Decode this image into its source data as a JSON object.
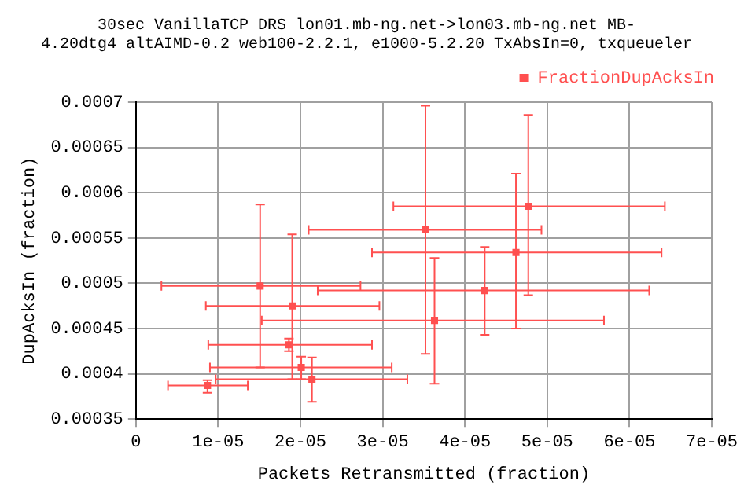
{
  "chart_data": {
    "type": "scatter",
    "title": "30sec VanillaTCP DRS lon01.mb-ng.net->lon03.mb-ng.net MB-",
    "subtitle": "4.20dtg4 altAIMD-0.2 web100-2.2.1, e1000-5.2.20 TxAbsIn=0, txqueueler",
    "xlabel": "Packets Retransmitted (fraction)",
    "ylabel": "DupAcksIn (fraction)",
    "x": [
      3.52e-05,
      4.77e-05,
      4.62e-05,
      4.24e-05,
      3.63e-05,
      1.51e-05,
      1.9e-05,
      1.86e-05,
      2.01e-05,
      2.14e-05,
      8.7e-06
    ],
    "series": [
      {
        "name": "FractionDupAcksIn",
        "color": "#ff5050",
        "values": [
          0.000559,
          0.000585,
          0.000534,
          0.000492,
          0.000459,
          0.000497,
          0.000475,
          0.000432,
          0.000407,
          0.000394,
          0.000387
        ],
        "errors": [
          [
            0.000422,
            0.000696
          ],
          [
            0.000487,
            0.000686
          ],
          [
            0.00045,
            0.000621
          ],
          [
            0.000443,
            0.00054
          ],
          [
            0.000389,
            0.000528
          ],
          [
            0.000407,
            0.000587
          ],
          [
            0.000394,
            0.000554
          ],
          [
            0.000425,
            0.000439
          ],
          [
            0.000394,
            0.000419
          ],
          [
            0.000369,
            0.000418
          ],
          [
            0.000379,
            0.000393
          ]
        ],
        "xerrors": [
          [
            2.1e-05,
            4.93e-05
          ],
          [
            3.13e-05,
            6.43e-05
          ],
          [
            2.87e-05,
            6.39e-05
          ],
          [
            2.21e-05,
            6.24e-05
          ],
          [
            1.53e-05,
            5.69e-05
          ],
          [
            3.1e-06,
            2.73e-05
          ],
          [
            8.5e-06,
            2.96e-05
          ],
          [
            8.8e-06,
            2.87e-05
          ],
          [
            9e-06,
            3.11e-05
          ],
          [
            9.7e-06,
            3.3e-05
          ],
          [
            3.9e-06,
            1.36e-05
          ]
        ]
      }
    ],
    "xlim": [
      0,
      7e-05
    ],
    "xticks": [
      0,
      {
        "value": 1e-05,
        "label": "1e-05"
      },
      {
        "value": 2e-05,
        "label": "2e-05"
      },
      {
        "value": 3e-05,
        "label": "3e-05"
      },
      {
        "value": 4e-05,
        "label": "4e-05"
      },
      {
        "value": 5e-05,
        "label": "5e-05"
      },
      {
        "value": 6e-05,
        "label": "6e-05"
      },
      {
        "value": 7e-05,
        "label": "7e-05"
      }
    ],
    "ylim": [
      0.00035,
      0.0007
    ],
    "yticks": [
      0.00035,
      0.0004,
      0.00045,
      0.0005,
      0.00055,
      0.0006,
      0.00065,
      0.0007
    ],
    "grid": true,
    "legend": "top right",
    "marker": "square"
  }
}
